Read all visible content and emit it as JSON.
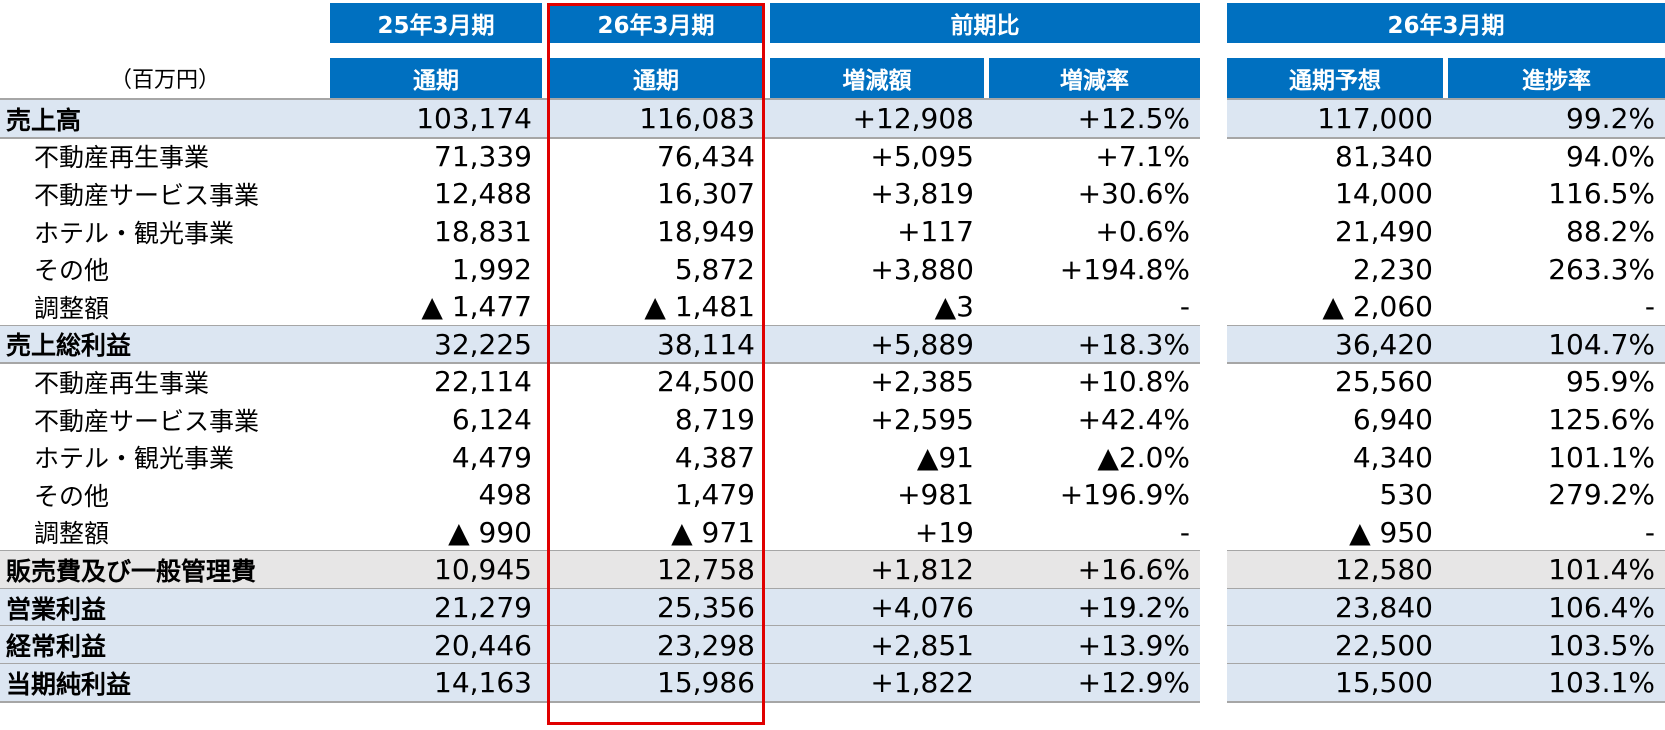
{
  "unit_label": "（百万円）",
  "header": {
    "col1_top": "25年3月期",
    "col1_sub": "通期",
    "col2_top": "26年3月期",
    "col2_sub": "通期",
    "cmp_top": "前期比",
    "cmp_diff": "増減額",
    "cmp_rate": "増減率",
    "fc_top": "26年3月期",
    "fc_plan": "通期予想",
    "fc_progress": "進捗率"
  },
  "rows": [
    {
      "label": "売上高",
      "type": "main",
      "prev": "103,174",
      "curr": "116,083",
      "diff": "+12,908",
      "rate": "+12.5%",
      "plan": "117,000",
      "progress": "99.2%"
    },
    {
      "label": "不動産再生事業",
      "type": "sub",
      "prev": "71,339",
      "curr": "76,434",
      "diff": "+5,095",
      "rate": "+7.1%",
      "plan": "81,340",
      "progress": "94.0%"
    },
    {
      "label": "不動産サービス事業",
      "type": "sub",
      "prev": "12,488",
      "curr": "16,307",
      "diff": "+3,819",
      "rate": "+30.6%",
      "plan": "14,000",
      "progress": "116.5%"
    },
    {
      "label": "ホテル・観光事業",
      "type": "sub",
      "prev": "18,831",
      "curr": "18,949",
      "diff": "+117",
      "rate": "+0.6%",
      "plan": "21,490",
      "progress": "88.2%"
    },
    {
      "label": "その他",
      "type": "sub",
      "prev": "1,992",
      "curr": "5,872",
      "diff": "+3,880",
      "rate": "+194.8%",
      "plan": "2,230",
      "progress": "263.3%"
    },
    {
      "label": "調整額",
      "type": "sub",
      "prev": "▲ 1,477",
      "curr": "▲ 1,481",
      "diff": "▲3",
      "rate": "-",
      "plan": "▲ 2,060",
      "progress": "-"
    },
    {
      "label": "売上総利益",
      "type": "main",
      "prev": "32,225",
      "curr": "38,114",
      "diff": "+5,889",
      "rate": "+18.3%",
      "plan": "36,420",
      "progress": "104.7%"
    },
    {
      "label": "不動産再生事業",
      "type": "sub",
      "prev": "22,114",
      "curr": "24,500",
      "diff": "+2,385",
      "rate": "+10.8%",
      "plan": "25,560",
      "progress": "95.9%"
    },
    {
      "label": "不動産サービス事業",
      "type": "sub",
      "prev": "6,124",
      "curr": "8,719",
      "diff": "+2,595",
      "rate": "+42.4%",
      "plan": "6,940",
      "progress": "125.6%"
    },
    {
      "label": "ホテル・観光事業",
      "type": "sub",
      "prev": "4,479",
      "curr": "4,387",
      "diff": "▲91",
      "rate": "▲2.0%",
      "plan": "4,340",
      "progress": "101.1%"
    },
    {
      "label": "その他",
      "type": "sub",
      "prev": "498",
      "curr": "1,479",
      "diff": "+981",
      "rate": "+196.9%",
      "plan": "530",
      "progress": "279.2%"
    },
    {
      "label": "調整額",
      "type": "sub",
      "prev": "▲ 990",
      "curr": "▲ 971",
      "diff": "+19",
      "rate": "-",
      "plan": "▲ 950",
      "progress": "-"
    },
    {
      "label": "販売費及び一般管理費",
      "type": "sga",
      "prev": "10,945",
      "curr": "12,758",
      "diff": "+1,812",
      "rate": "+16.6%",
      "plan": "12,580",
      "progress": "101.4%"
    },
    {
      "label": "営業利益",
      "type": "main",
      "prev": "21,279",
      "curr": "25,356",
      "diff": "+4,076",
      "rate": "+19.2%",
      "plan": "23,840",
      "progress": "106.4%"
    },
    {
      "label": "経常利益",
      "type": "main",
      "prev": "20,446",
      "curr": "23,298",
      "diff": "+2,851",
      "rate": "+13.9%",
      "plan": "22,500",
      "progress": "103.5%"
    },
    {
      "label": "当期純利益",
      "type": "main",
      "prev": "14,163",
      "curr": "15,986",
      "diff": "+1,822",
      "rate": "+12.9%",
      "plan": "15,500",
      "progress": "103.1%"
    }
  ],
  "colors": {
    "header_bg": "#0070c0",
    "header_text": "#ffffff",
    "highlight_row": "#dce6f2",
    "sga_row": "#e7e6e6",
    "highlight_border": "#e00000",
    "separator": "#a6a6a6"
  }
}
